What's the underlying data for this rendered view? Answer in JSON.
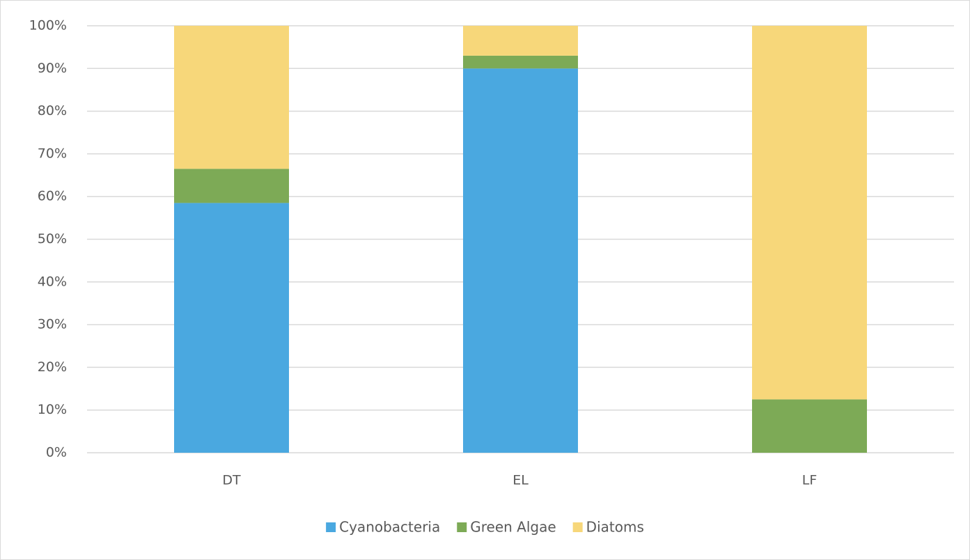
{
  "chart_data": {
    "type": "stacked_bar",
    "categories": [
      "DT",
      "EL",
      "LF"
    ],
    "series": [
      {
        "name": "Cyanobacteria",
        "color": "#4aa8e0",
        "values": [
          58.5,
          90,
          0
        ]
      },
      {
        "name": "Green Algae",
        "color": "#7daa56",
        "values": [
          8,
          3,
          12.5
        ]
      },
      {
        "name": "Diatoms",
        "color": "#f7d77a",
        "values": [
          33.5,
          7,
          87.5
        ]
      }
    ],
    "ylim": [
      0,
      100
    ],
    "yticks": [
      {
        "value": 0,
        "label": "0%"
      },
      {
        "value": 10,
        "label": "10%"
      },
      {
        "value": 20,
        "label": "20%"
      },
      {
        "value": 30,
        "label": "30%"
      },
      {
        "value": 40,
        "label": "40%"
      },
      {
        "value": 50,
        "label": "50%"
      },
      {
        "value": 60,
        "label": "60%"
      },
      {
        "value": 70,
        "label": "70%"
      },
      {
        "value": 80,
        "label": "80%"
      },
      {
        "value": 90,
        "label": "90%"
      },
      {
        "value": 100,
        "label": "100%"
      }
    ],
    "grid": true,
    "legend": "bottom"
  }
}
